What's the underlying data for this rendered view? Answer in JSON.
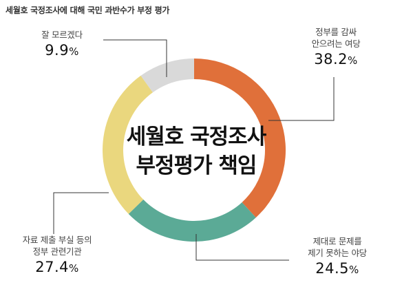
{
  "header": {
    "title": "세월호 국정조사에 대해 국민 과반수가 부정 평가"
  },
  "center": {
    "line1": "세월호 국정조사",
    "line2": "부정평가 책임"
  },
  "chart_data": {
    "type": "pie",
    "donut": true,
    "title": "세월호 국정조사에 대해 국민 과반수가 부정 평가",
    "slices": [
      {
        "label_lines": [
          "정부를 감싸",
          "안으려는 여당"
        ],
        "value": 38.2,
        "color": "#E0703A"
      },
      {
        "label_lines": [
          "제대로 문제를",
          "제기 못하는 야당"
        ],
        "value": 24.5,
        "color": "#5BAA96"
      },
      {
        "label_lines": [
          "자료 제출 부실 등의",
          "정부 관련기관"
        ],
        "value": 27.4,
        "color": "#EAD77E"
      },
      {
        "label_lines": [
          "잘 모르겠다"
        ],
        "value": 9.9,
        "color": "#D9D9D9"
      }
    ],
    "unit": "%"
  }
}
